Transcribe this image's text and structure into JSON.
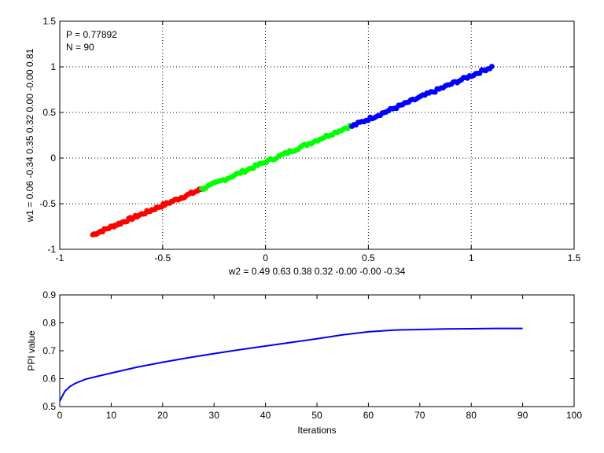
{
  "chart_data": [
    {
      "type": "scatter",
      "title": "",
      "xlabel": "w2 = 0.49  0.63  0.38  0.32  -0.00  -0.00  -0.34",
      "ylabel": "w1 = 0.06  -0.34  0.35  0.32  0.00  -0.00  0.81",
      "xlim": [
        -1,
        1.5
      ],
      "ylim": [
        -1,
        1.5
      ],
      "xticks": [
        "-1",
        "-0.5",
        "0",
        "0.5",
        "1",
        "1.5"
      ],
      "yticks": [
        "-1",
        "-0.5",
        "0",
        "0.5",
        "1",
        "1.5"
      ],
      "grid": true,
      "annotations": [
        "P = 0.77892",
        "N = 90"
      ],
      "colors": {
        "red": "#ff0000",
        "green": "#00ff00",
        "blue": "#0000ff"
      },
      "series": [
        {
          "color": "#ff0000",
          "x_range": [
            -0.84,
            -0.29
          ],
          "y_range": [
            -0.84,
            -0.32
          ]
        },
        {
          "color": "#00ff00",
          "x_range": [
            -0.31,
            0.41
          ],
          "y_range": [
            -0.34,
            0.35
          ]
        },
        {
          "color": "#0000ff",
          "x_range": [
            0.42,
            1.1
          ],
          "y_range": [
            0.35,
            1.0
          ]
        }
      ]
    },
    {
      "type": "line",
      "title": "",
      "xlabel": "Iterations",
      "ylabel": "PPI value",
      "xlim": [
        0,
        100
      ],
      "ylim": [
        0.5,
        0.9
      ],
      "xticks": [
        "0",
        "10",
        "20",
        "30",
        "40",
        "50",
        "60",
        "70",
        "80",
        "90",
        "100"
      ],
      "yticks": [
        "0.5",
        "0.6",
        "0.7",
        "0.8",
        "0.9"
      ],
      "grid": false,
      "color": "#0000ff",
      "x": [
        0,
        1,
        2,
        3,
        5,
        7,
        10,
        15,
        20,
        25,
        30,
        35,
        40,
        45,
        50,
        55,
        60,
        65,
        70,
        75,
        80,
        85,
        90
      ],
      "y": [
        0.52,
        0.555,
        0.572,
        0.583,
        0.598,
        0.607,
        0.62,
        0.641,
        0.659,
        0.675,
        0.69,
        0.704,
        0.717,
        0.73,
        0.743,
        0.757,
        0.768,
        0.774,
        0.776,
        0.778,
        0.779,
        0.78,
        0.78
      ]
    }
  ]
}
